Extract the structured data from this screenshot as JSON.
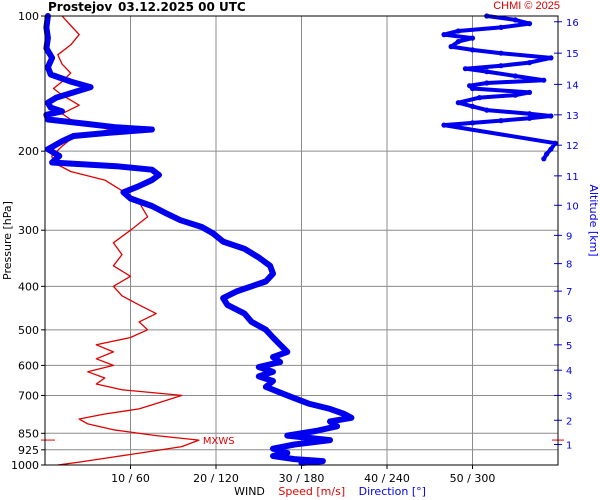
{
  "header": {
    "station": "Prostejov",
    "datetime": "03.12.2025 00 UTC",
    "copyright": "CHMI © 2025"
  },
  "colors": {
    "speed": "#e00000",
    "direction": "#0000ee",
    "grid": "#8c8c8c",
    "text": "#000000"
  },
  "chart_data": {
    "type": "line",
    "title": "Prostejov 03.12.2025 00 UTC",
    "y_axis": {
      "label": "Pressure [hPa]",
      "scale": "log",
      "range": [
        1000,
        100
      ],
      "ticks": [
        100,
        200,
        300,
        400,
        500,
        600,
        700,
        850,
        925,
        1000
      ]
    },
    "y2_axis": {
      "label": "Altitude [km]",
      "ticks": [
        1,
        2,
        3,
        4,
        5,
        6,
        7,
        8,
        9,
        10,
        11,
        12,
        13,
        14,
        15,
        16
      ],
      "pressure_at_km": [
        900,
        795,
        700,
        615,
        540,
        470,
        410,
        356,
        308,
        264,
        227,
        194,
        166,
        142,
        121,
        103
      ]
    },
    "x_axis": {
      "label": "WIND",
      "speed_label": "Speed [m/s]",
      "direction_label": "Direction [°]",
      "speed_range": [
        0,
        60
      ],
      "direction_range": [
        0,
        360
      ],
      "ticks": [
        {
          "speed": 10,
          "direction": 60,
          "label": "10 / 60"
        },
        {
          "speed": 20,
          "direction": 120,
          "label": "20 / 120"
        },
        {
          "speed": 30,
          "direction": 180,
          "label": "30 / 180"
        },
        {
          "speed": 40,
          "direction": 240,
          "label": "40 / 240"
        },
        {
          "speed": 50,
          "direction": 300,
          "label": "50 / 300"
        }
      ]
    },
    "grid": true,
    "annotations": [
      {
        "text": "MXWS",
        "pressure": 880,
        "speed": 18
      }
    ],
    "series": [
      {
        "name": "Speed [m/s]",
        "points": [
          {
            "p": 1000,
            "v": 1.5
          },
          {
            "p": 985,
            "v": 4
          },
          {
            "p": 960,
            "v": 8
          },
          {
            "p": 935,
            "v": 12
          },
          {
            "p": 910,
            "v": 16
          },
          {
            "p": 880,
            "v": 18
          },
          {
            "p": 860,
            "v": 13
          },
          {
            "p": 835,
            "v": 8
          },
          {
            "p": 810,
            "v": 5
          },
          {
            "p": 790,
            "v": 4
          },
          {
            "p": 770,
            "v": 7
          },
          {
            "p": 750,
            "v": 11
          },
          {
            "p": 720,
            "v": 14
          },
          {
            "p": 700,
            "v": 16
          },
          {
            "p": 680,
            "v": 9
          },
          {
            "p": 660,
            "v": 6
          },
          {
            "p": 640,
            "v": 7
          },
          {
            "p": 620,
            "v": 5
          },
          {
            "p": 600,
            "v": 8
          },
          {
            "p": 580,
            "v": 6
          },
          {
            "p": 560,
            "v": 8
          },
          {
            "p": 540,
            "v": 6
          },
          {
            "p": 520,
            "v": 10
          },
          {
            "p": 500,
            "v": 12
          },
          {
            "p": 480,
            "v": 11
          },
          {
            "p": 460,
            "v": 13
          },
          {
            "p": 440,
            "v": 11
          },
          {
            "p": 420,
            "v": 9
          },
          {
            "p": 400,
            "v": 8
          },
          {
            "p": 380,
            "v": 10
          },
          {
            "p": 360,
            "v": 8
          },
          {
            "p": 340,
            "v": 9
          },
          {
            "p": 320,
            "v": 8
          },
          {
            "p": 300,
            "v": 10
          },
          {
            "p": 280,
            "v": 12
          },
          {
            "p": 260,
            "v": 11
          },
          {
            "p": 245,
            "v": 9
          },
          {
            "p": 232,
            "v": 7
          },
          {
            "p": 222,
            "v": 3
          },
          {
            "p": 212,
            "v": 1
          },
          {
            "p": 205,
            "v": 0.8
          },
          {
            "p": 195,
            "v": 2
          },
          {
            "p": 188,
            "v": 3
          },
          {
            "p": 182,
            "v": 6
          },
          {
            "p": 178,
            "v": 8
          },
          {
            "p": 175,
            "v": 5
          },
          {
            "p": 170,
            "v": 3
          },
          {
            "p": 165,
            "v": 2
          },
          {
            "p": 158,
            "v": 4
          },
          {
            "p": 150,
            "v": 2
          },
          {
            "p": 145,
            "v": 1
          },
          {
            "p": 140,
            "v": 2
          },
          {
            "p": 134,
            "v": 3
          },
          {
            "p": 128,
            "v": 2
          },
          {
            "p": 122,
            "v": 1.5
          },
          {
            "p": 116,
            "v": 3
          },
          {
            "p": 110,
            "v": 4
          },
          {
            "p": 105,
            "v": 3
          },
          {
            "p": 100,
            "v": 2
          }
        ]
      },
      {
        "name": "Direction [°]",
        "points": [
          {
            "p": 990,
            "d": 180
          },
          {
            "p": 980,
            "d": 195
          },
          {
            "p": 970,
            "d": 175
          },
          {
            "p": 955,
            "d": 160
          },
          {
            "p": 940,
            "d": 170
          },
          {
            "p": 920,
            "d": 160
          },
          {
            "p": 900,
            "d": 175
          },
          {
            "p": 880,
            "d": 200
          },
          {
            "p": 860,
            "d": 170
          },
          {
            "p": 840,
            "d": 190
          },
          {
            "p": 820,
            "d": 205
          },
          {
            "p": 800,
            "d": 200
          },
          {
            "p": 785,
            "d": 215
          },
          {
            "p": 770,
            "d": 210
          },
          {
            "p": 750,
            "d": 200
          },
          {
            "p": 730,
            "d": 185
          },
          {
            "p": 710,
            "d": 175
          },
          {
            "p": 690,
            "d": 165
          },
          {
            "p": 670,
            "d": 155
          },
          {
            "p": 650,
            "d": 160
          },
          {
            "p": 635,
            "d": 150
          },
          {
            "p": 620,
            "d": 160
          },
          {
            "p": 605,
            "d": 150
          },
          {
            "p": 590,
            "d": 165
          },
          {
            "p": 575,
            "d": 160
          },
          {
            "p": 560,
            "d": 170
          },
          {
            "p": 540,
            "d": 165
          },
          {
            "p": 520,
            "d": 160
          },
          {
            "p": 500,
            "d": 155
          },
          {
            "p": 480,
            "d": 145
          },
          {
            "p": 460,
            "d": 140
          },
          {
            "p": 440,
            "d": 128
          },
          {
            "p": 425,
            "d": 125
          },
          {
            "p": 410,
            "d": 135
          },
          {
            "p": 400,
            "d": 145
          },
          {
            "p": 390,
            "d": 155
          },
          {
            "p": 375,
            "d": 160
          },
          {
            "p": 360,
            "d": 158
          },
          {
            "p": 345,
            "d": 150
          },
          {
            "p": 330,
            "d": 140
          },
          {
            "p": 318,
            "d": 125
          },
          {
            "p": 305,
            "d": 118
          },
          {
            "p": 295,
            "d": 110
          },
          {
            "p": 285,
            "d": 95
          },
          {
            "p": 275,
            "d": 85
          },
          {
            "p": 265,
            "d": 75
          },
          {
            "p": 255,
            "d": 60
          },
          {
            "p": 247,
            "d": 55
          },
          {
            "p": 240,
            "d": 65
          },
          {
            "p": 232,
            "d": 75
          },
          {
            "p": 226,
            "d": 80
          },
          {
            "p": 220,
            "d": 75
          },
          {
            "p": 216,
            "d": 50
          },
          {
            "p": 212,
            "d": 5
          },
          {
            "p": 205,
            "d": 10
          },
          {
            "p": 198,
            "d": 2
          },
          {
            "p": 190,
            "d": 12
          },
          {
            "p": 185,
            "d": 20
          },
          {
            "p": 182,
            "d": 45
          },
          {
            "p": 179,
            "d": 75
          },
          {
            "p": 177,
            "d": 50
          },
          {
            "p": 174,
            "d": 30
          },
          {
            "p": 170,
            "d": 2
          },
          {
            "p": 166,
            "d": 1
          },
          {
            "p": 163,
            "d": 12
          },
          {
            "p": 160,
            "d": 4
          },
          {
            "p": 156,
            "d": 2
          },
          {
            "p": 152,
            "d": 8
          },
          {
            "p": 148,
            "d": 20
          },
          {
            "p": 144,
            "d": 32
          },
          {
            "p": 140,
            "d": 18
          },
          {
            "p": 135,
            "d": 4
          },
          {
            "p": 130,
            "d": 2
          },
          {
            "p": 124,
            "d": 5
          },
          {
            "p": 118,
            "d": 1
          },
          {
            "p": 112,
            "d": 2
          },
          {
            "p": 106,
            "d": 1
          },
          {
            "p": 100,
            "d": 2
          }
        ]
      },
      {
        "name": "Direction [°] upper",
        "points": [
          {
            "p": 208,
            "d": 350
          },
          {
            "p": 203,
            "d": 352
          },
          {
            "p": 198,
            "d": 355
          },
          {
            "p": 192,
            "d": 358
          },
          {
            "p": 175,
            "d": 280
          },
          {
            "p": 173,
            "d": 300
          },
          {
            "p": 171,
            "d": 320
          },
          {
            "p": 169,
            "d": 340
          },
          {
            "p": 167,
            "d": 355
          },
          {
            "p": 165,
            "d": 340
          },
          {
            "p": 162,
            "d": 310
          },
          {
            "p": 159,
            "d": 300
          },
          {
            "p": 156,
            "d": 290
          },
          {
            "p": 152,
            "d": 305
          },
          {
            "p": 150,
            "d": 330
          },
          {
            "p": 148,
            "d": 340
          },
          {
            "p": 145,
            "d": 300
          },
          {
            "p": 143,
            "d": 298
          },
          {
            "p": 141,
            "d": 310
          },
          {
            "p": 139,
            "d": 350
          },
          {
            "p": 136,
            "d": 330
          },
          {
            "p": 133,
            "d": 310
          },
          {
            "p": 131,
            "d": 295
          },
          {
            "p": 129,
            "d": 320
          },
          {
            "p": 127,
            "d": 340
          },
          {
            "p": 124,
            "d": 355
          },
          {
            "p": 121,
            "d": 320
          },
          {
            "p": 119,
            "d": 300
          },
          {
            "p": 117,
            "d": 285
          },
          {
            "p": 114,
            "d": 290
          },
          {
            "p": 112,
            "d": 300
          },
          {
            "p": 110,
            "d": 280
          },
          {
            "p": 108,
            "d": 290
          },
          {
            "p": 106,
            "d": 320
          },
          {
            "p": 104,
            "d": 340
          },
          {
            "p": 102,
            "d": 330
          },
          {
            "p": 100,
            "d": 310
          }
        ]
      }
    ]
  }
}
